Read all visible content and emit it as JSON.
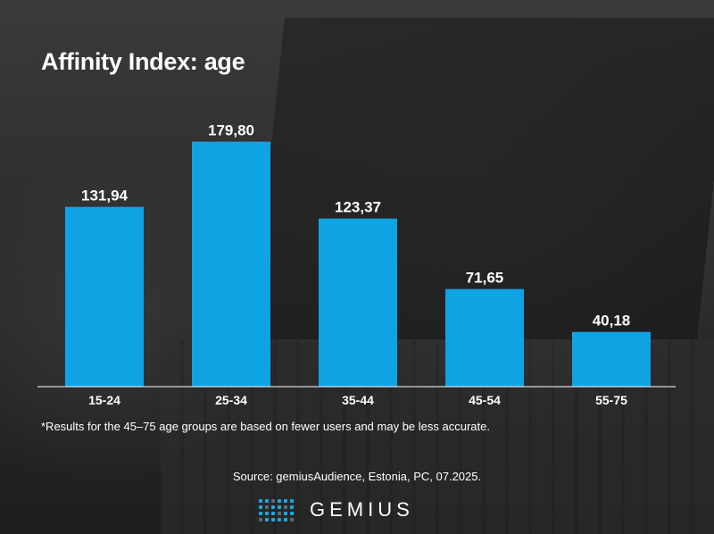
{
  "title": "Affinity Index: age",
  "footnote": "*Results for the 45–75 age groups are based on fewer users and may be less accurate.",
  "source": "Source: gemiusAudience, Estonia, PC, 07.2025.",
  "logo_text": "GEMIUS",
  "colors": {
    "bar": "#0fa3e3",
    "text": "#ffffff",
    "logo_dots": "#1aa7e6"
  },
  "chart_data": {
    "type": "bar",
    "title": "Affinity Index: age",
    "categories": [
      "15-24",
      "25-34",
      "35-44",
      "45-54",
      "55-75"
    ],
    "values": [
      131.94,
      179.8,
      123.37,
      71.65,
      40.18
    ],
    "value_labels": [
      "131,94",
      "179,80",
      "123,37",
      "71,65",
      "40,18"
    ],
    "xlabel": "",
    "ylabel": "",
    "ylim": [
      0,
      200
    ],
    "grid": false,
    "legend": "none"
  }
}
